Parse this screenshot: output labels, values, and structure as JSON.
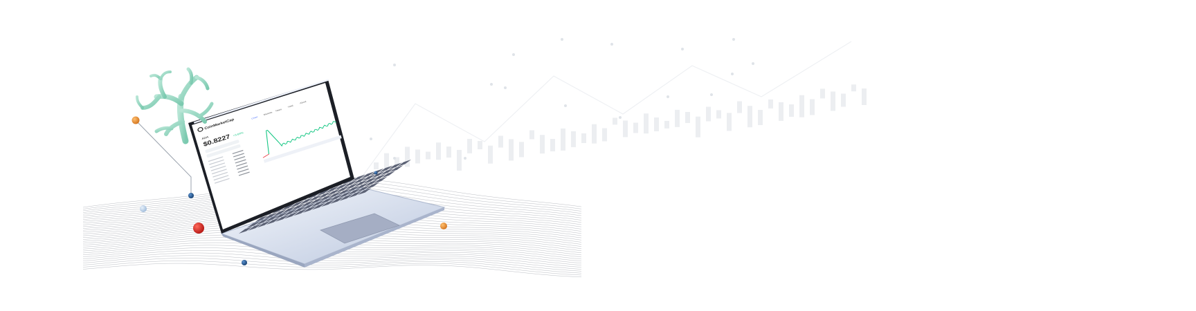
{
  "hero": {
    "brand_name": "CoinMarketCap",
    "coin": {
      "symbol": "ADA",
      "price": "$0.8227",
      "change": "+3.64%"
    },
    "chart_tabs": [
      "Chart",
      "Markets",
      "News",
      "Yield",
      "About"
    ]
  },
  "colors": {
    "background": "#ffffff",
    "accent_green": "#16c784",
    "negative_red": "#ea3943",
    "coral_green": "#9fd9c4",
    "laptop_silver": "#dfe6f3",
    "keys_dark": "#5c6275",
    "sphere_orange": "#e88c2e",
    "sphere_red": "#d62a24",
    "sphere_blue": "#1f5a96",
    "watermark_grey": "#e9ecf0"
  }
}
